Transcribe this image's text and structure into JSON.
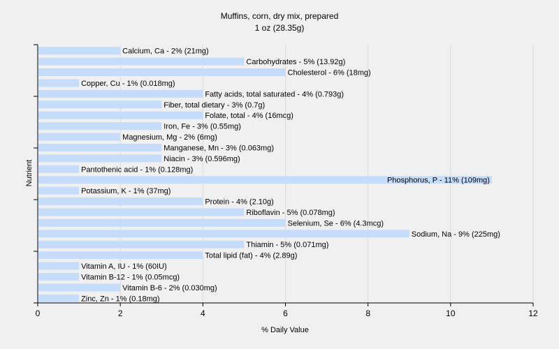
{
  "chart_data": {
    "type": "bar",
    "orientation": "horizontal",
    "title": "Muffins, corn, dry mix, prepared",
    "subtitle": "1 oz (28.35g)",
    "xlabel": "% Daily Value",
    "ylabel": "Nutrient",
    "xlim": [
      0,
      12
    ],
    "xticks": [
      0,
      2,
      4,
      6,
      8,
      10,
      12
    ],
    "grid": true,
    "bar_color": "#c5dcfa",
    "categories": [
      "Calcium, Ca",
      "Carbohydrates",
      "Cholesterol",
      "Copper, Cu",
      "Fatty acids, total saturated",
      "Fiber, total dietary",
      "Folate, total",
      "Iron, Fe",
      "Magnesium, Mg",
      "Manganese, Mn",
      "Niacin",
      "Pantothenic acid",
      "Phosphorus, P",
      "Potassium, K",
      "Protein",
      "Riboflavin",
      "Selenium, Se",
      "Sodium, Na",
      "Thiamin",
      "Total lipid (fat)",
      "Vitamin A, IU",
      "Vitamin B-12",
      "Vitamin B-6",
      "Zinc, Zn"
    ],
    "values": [
      2,
      5,
      6,
      1,
      4,
      3,
      4,
      3,
      2,
      3,
      3,
      1,
      11,
      1,
      4,
      5,
      6,
      9,
      5,
      4,
      1,
      1,
      2,
      1
    ],
    "labels": [
      "Calcium, Ca - 2% (21mg)",
      "Carbohydrates - 5% (13.92g)",
      "Cholesterol - 6% (18mg)",
      "Copper, Cu - 1% (0.018mg)",
      "Fatty acids, total saturated - 4% (0.793g)",
      "Fiber, total dietary - 3% (0.7g)",
      "Folate, total - 4% (16mcg)",
      "Iron, Fe - 3% (0.55mg)",
      "Magnesium, Mg - 2% (6mg)",
      "Manganese, Mn - 3% (0.063mg)",
      "Niacin - 3% (0.596mg)",
      "Pantothenic acid - 1% (0.128mg)",
      "Phosphorus, P - 11% (109mg)",
      "Potassium, K - 1% (37mg)",
      "Protein - 4% (2.10g)",
      "Riboflavin - 5% (0.078mg)",
      "Selenium, Se - 6% (4.3mcg)",
      "Sodium, Na - 9% (225mg)",
      "Thiamin - 5% (0.071mg)",
      "Total lipid (fat) - 4% (2.89g)",
      "Vitamin A, IU - 1% (60IU)",
      "Vitamin B-12 - 1% (0.05mcg)",
      "Vitamin B-6 - 2% (0.030mg)",
      "Zinc, Zn - 1% (0.18mg)"
    ]
  }
}
